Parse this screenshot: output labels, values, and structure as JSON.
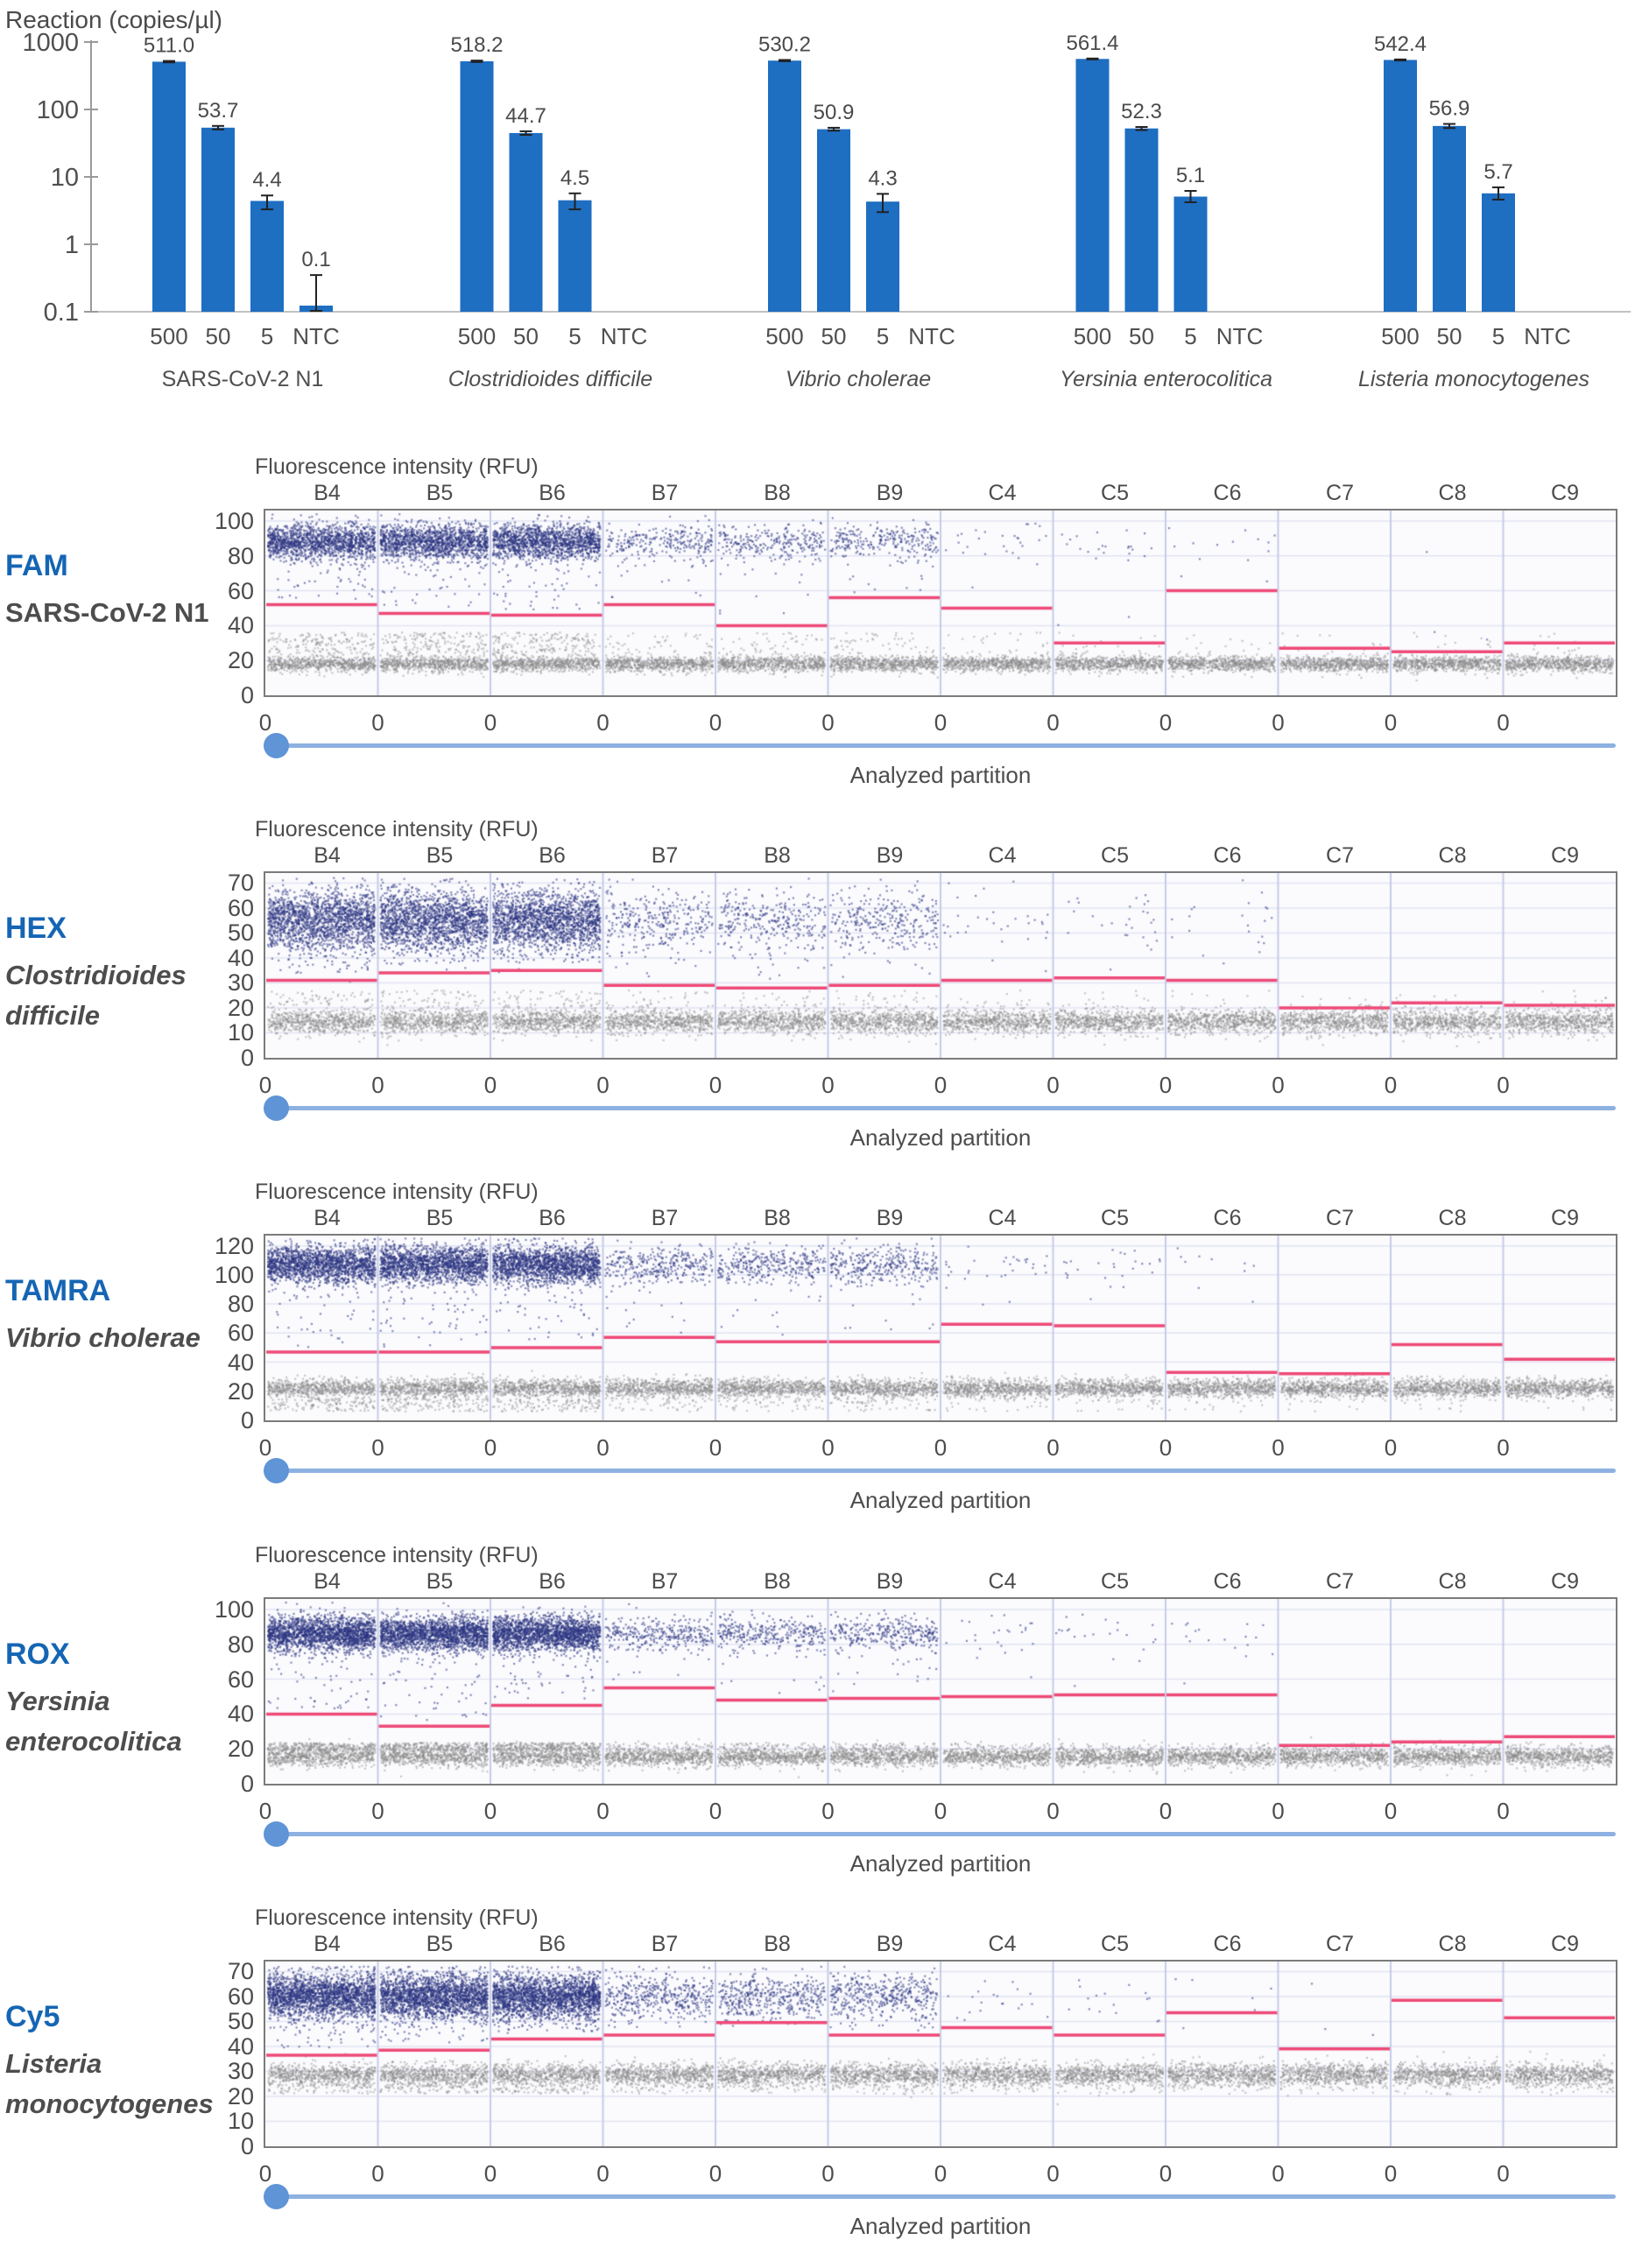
{
  "ui": {
    "axis_title": "Fluorescence intensity (RFU)",
    "analyzed_partition": "Analyzed partition",
    "zero_label": "0",
    "colors": {
      "bar_blue": "#1e6ec2",
      "fluor_label_blue": "#1565b4",
      "positive_dot_navy": "#2c3482",
      "negative_dot_gray": "#8a8a8a",
      "threshold_pink": "#ee4a77",
      "separator_lavender": "#c6cbe7",
      "gridline": "#e1e4f2",
      "slider_line_blue": "#8db1e1",
      "slider_knob_blue": "#5f94d6"
    }
  },
  "chart_data": [
    {
      "type": "bar",
      "title": "Reaction (copies/µl)",
      "yscale": "log",
      "ylim": [
        0.1,
        1000
      ],
      "y_tick_labels": [
        "1000",
        "100",
        "10",
        "1",
        "0.1"
      ],
      "categories": [
        "500",
        "50",
        "5",
        "NTC"
      ],
      "grid": false,
      "groups": [
        {
          "name": "SARS-CoV-2 N1",
          "italic": false,
          "values": [
            511.0,
            53.7,
            4.4,
            0.1
          ],
          "value_labels": [
            "511.0",
            "53.7",
            "4.4",
            "0.1"
          ],
          "err": [
            [
              499,
              524
            ],
            [
              50.5,
              57.0
            ],
            [
              3.3,
              5.3
            ],
            [
              0.1,
              0.35
            ]
          ]
        },
        {
          "name": "Clostridioides difficile",
          "italic": true,
          "values": [
            518.2,
            44.7,
            4.5,
            null
          ],
          "value_labels": [
            "518.2",
            "44.7",
            "4.5",
            null
          ],
          "err": [
            [
              506,
              531
            ],
            [
              42.0,
              47.5
            ],
            [
              3.3,
              5.7
            ],
            null
          ]
        },
        {
          "name": "Vibrio cholerae",
          "italic": true,
          "values": [
            530.2,
            50.9,
            4.3,
            null
          ],
          "value_labels": [
            "530.2",
            "50.9",
            "4.3",
            null
          ],
          "err": [
            [
              519,
              542
            ],
            [
              48.5,
              53.5
            ],
            [
              3.0,
              5.6
            ],
            null
          ]
        },
        {
          "name": "Yersinia enterocolitica",
          "italic": true,
          "values": [
            561.4,
            52.3,
            5.1,
            null
          ],
          "value_labels": [
            "561.4",
            "52.3",
            "5.1",
            null
          ],
          "err": [
            [
              553,
              570
            ],
            [
              49.5,
              55.0
            ],
            [
              4.2,
              6.2
            ],
            null
          ]
        },
        {
          "name": "Listeria monocytogenes",
          "italic": true,
          "values": [
            542.4,
            56.9,
            5.7,
            null
          ],
          "value_labels": [
            "542.4",
            "56.9",
            "5.7",
            null
          ],
          "err": [
            [
              533,
              552
            ],
            [
              53.0,
              61.0
            ],
            [
              4.6,
              7.0
            ],
            null
          ]
        }
      ]
    },
    {
      "type": "scatter",
      "fluor": "FAM",
      "target": "SARS-CoV-2 N1",
      "target_lines": [
        "SARS-CoV-2 N1"
      ],
      "target_italic": false,
      "wells": [
        "B4",
        "B5",
        "B6",
        "B7",
        "B8",
        "B9",
        "C4",
        "C5",
        "C6",
        "C7",
        "C8",
        "C9"
      ],
      "ylabel": "Fluorescence intensity (RFU)",
      "xlabel": "Analyzed partition",
      "x_tick_label": "0",
      "y_ticks": [
        100,
        80,
        60,
        40,
        20,
        0
      ],
      "y_top": 106,
      "thresholds": [
        52,
        47,
        46,
        52,
        40,
        56,
        50,
        30,
        60,
        27,
        25,
        30
      ],
      "positive_cluster_mean": 88,
      "positive_cluster_sd": 5,
      "negative_band_mean": 18,
      "negative_band_sd": 2.2,
      "positive_counts": [
        1400,
        1400,
        1400,
        260,
        260,
        260,
        26,
        22,
        12,
        0,
        1,
        0
      ],
      "gray_rain": {
        "lo": 24,
        "hi": 36,
        "counts": [
          160,
          160,
          160,
          45,
          45,
          45,
          20,
          16,
          12,
          10,
          10,
          10
        ]
      }
    },
    {
      "type": "scatter",
      "fluor": "HEX",
      "target": "Clostridioides difficile",
      "target_lines": [
        "Clostridioides",
        "difficile"
      ],
      "target_italic": true,
      "wells": [
        "B4",
        "B5",
        "B6",
        "B7",
        "B8",
        "B9",
        "C4",
        "C5",
        "C6",
        "C7",
        "C8",
        "C9"
      ],
      "ylabel": "Fluorescence intensity (RFU)",
      "xlabel": "Analyzed partition",
      "x_tick_label": "0",
      "y_ticks": [
        70,
        60,
        50,
        40,
        30,
        20,
        10,
        0
      ],
      "y_top": 74,
      "thresholds": [
        31,
        34,
        35,
        29,
        28,
        29,
        31,
        32,
        31,
        20,
        22,
        21
      ],
      "positive_cluster_mean": 55,
      "positive_cluster_sd": 6,
      "negative_band_mean": 14.5,
      "negative_band_sd": 2.4,
      "positive_counts": [
        1700,
        1700,
        1700,
        300,
        300,
        300,
        30,
        26,
        20,
        0,
        0,
        0
      ],
      "gray_rain": {
        "lo": 20,
        "hi": 27,
        "counts": [
          60,
          60,
          60,
          25,
          25,
          25,
          12,
          10,
          8,
          6,
          6,
          6
        ]
      }
    },
    {
      "type": "scatter",
      "fluor": "TAMRA",
      "target": "Vibrio cholerae",
      "target_lines": [
        "Vibrio cholerae"
      ],
      "target_italic": true,
      "wells": [
        "B4",
        "B5",
        "B6",
        "B7",
        "B8",
        "B9",
        "C4",
        "C5",
        "C6",
        "C7",
        "C8",
        "C9"
      ],
      "ylabel": "Fluorescence intensity (RFU)",
      "xlabel": "Analyzed partition",
      "x_tick_label": "0",
      "y_ticks": [
        120,
        100,
        80,
        60,
        40,
        20,
        0
      ],
      "y_top": 127,
      "thresholds": [
        47,
        47,
        50,
        57,
        54,
        54,
        66,
        65,
        33,
        32,
        52,
        42
      ],
      "positive_cluster_mean": 107,
      "positive_cluster_sd": 6.5,
      "negative_band_mean": 22,
      "negative_band_sd": 3.2,
      "positive_counts": [
        1700,
        1700,
        1700,
        330,
        330,
        330,
        30,
        24,
        8,
        0,
        0,
        0
      ],
      "gray_rain": {
        "lo": 6,
        "hi": 15,
        "counts": [
          120,
          120,
          120,
          40,
          40,
          40,
          20,
          16,
          12,
          10,
          10,
          10
        ]
      }
    },
    {
      "type": "scatter",
      "fluor": "ROX",
      "target": "Yersinia enterocolitica",
      "target_lines": [
        "Yersinia",
        "enterocolitica"
      ],
      "target_italic": true,
      "wells": [
        "B4",
        "B5",
        "B6",
        "B7",
        "B8",
        "B9",
        "C4",
        "C5",
        "C6",
        "C7",
        "C8",
        "C9"
      ],
      "ylabel": "Fluorescence intensity (RFU)",
      "xlabel": "Analyzed partition",
      "x_tick_label": "0",
      "y_ticks": [
        100,
        80,
        60,
        40,
        20,
        0
      ],
      "y_top": 106,
      "thresholds": [
        40,
        33,
        45,
        55,
        48,
        49,
        50,
        51,
        51,
        22,
        24,
        27
      ],
      "positive_cluster_mean": 86,
      "positive_cluster_sd": 5,
      "negative_band_mean": 15.5,
      "negative_band_sd": 2.6,
      "positive_counts": [
        1900,
        1900,
        1900,
        320,
        320,
        320,
        24,
        20,
        16,
        0,
        0,
        0
      ],
      "gray_rain": {
        "lo": 19,
        "hi": 23.5,
        "counts": [
          260,
          260,
          260,
          60,
          60,
          60,
          30,
          25,
          20,
          12,
          12,
          12
        ]
      }
    },
    {
      "type": "scatter",
      "fluor": "Cy5",
      "target": "Listeria monocytogenes",
      "target_lines": [
        "Listeria",
        "monocytogenes"
      ],
      "target_italic": true,
      "wells": [
        "B4",
        "B5",
        "B6",
        "B7",
        "B8",
        "B9",
        "C4",
        "C5",
        "C6",
        "C7",
        "C8",
        "C9"
      ],
      "ylabel": "Fluorescence intensity (RFU)",
      "xlabel": "Analyzed partition",
      "x_tick_label": "0",
      "y_ticks": [
        70,
        60,
        50,
        40,
        30,
        20,
        10,
        0
      ],
      "y_top": 74,
      "thresholds": [
        36.5,
        38.5,
        43,
        44.5,
        49.5,
        44.5,
        47.5,
        44.5,
        53.5,
        39,
        58.5,
        51.5
      ],
      "positive_cluster_mean": 60,
      "positive_cluster_sd": 4.5,
      "negative_band_mean": 28.5,
      "negative_band_sd": 2.3,
      "positive_counts": [
        2100,
        2100,
        2100,
        420,
        420,
        420,
        18,
        14,
        6,
        1,
        0,
        0
      ],
      "gray_rain": {
        "lo": 21,
        "hi": 25,
        "counts": [
          60,
          60,
          60,
          30,
          30,
          30,
          15,
          12,
          10,
          8,
          8,
          8
        ]
      }
    }
  ]
}
